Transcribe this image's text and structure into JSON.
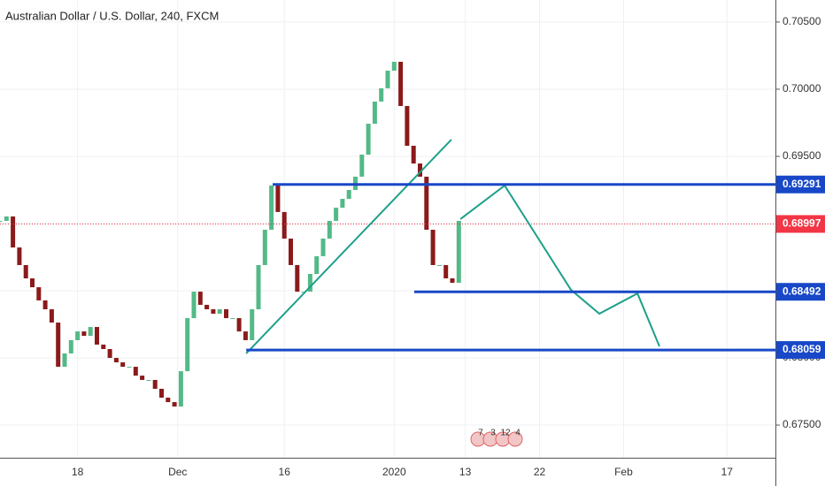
{
  "chart_data": {
    "type": "candlestick",
    "title": "Australian Dollar / U.S. Dollar, 240, FXCM",
    "x": [
      0,
      2,
      4,
      6,
      8,
      10,
      12,
      14,
      16,
      18,
      20,
      22,
      24,
      26,
      28,
      30,
      32,
      34,
      36,
      38,
      40,
      42,
      44,
      46,
      48,
      50,
      52,
      54,
      56,
      58,
      60,
      62,
      64,
      66,
      68,
      70,
      72,
      74,
      76,
      78,
      80,
      82,
      84,
      86,
      88,
      90,
      92,
      94,
      96,
      98,
      100,
      102,
      104,
      106,
      108,
      110,
      112,
      114,
      116,
      118,
      120,
      122,
      124,
      126,
      128,
      130,
      132,
      134,
      136,
      138,
      140,
      142
    ],
    "close": [
      0.6902,
      0.69053,
      0.68822,
      0.68691,
      0.68592,
      0.68526,
      0.68428,
      0.68362,
      0.68263,
      0.67934,
      0.68033,
      0.68132,
      0.68197,
      0.68164,
      0.6823,
      0.68099,
      0.68066,
      0.68,
      0.67967,
      0.67934,
      0.67934,
      0.67868,
      0.67836,
      0.67836,
      0.6777,
      0.67704,
      0.67671,
      0.67638,
      0.67901,
      0.68296,
      0.68493,
      0.68395,
      0.68362,
      0.68329,
      0.68362,
      0.68296,
      0.68296,
      0.68197,
      0.68132,
      0.68362,
      0.68691,
      0.68954,
      0.69283,
      0.69086,
      0.68888,
      0.68691,
      0.68493,
      0.68493,
      0.68625,
      0.68757,
      0.68888,
      0.6902,
      0.69118,
      0.69184,
      0.6925,
      0.69349,
      0.69513,
      0.69743,
      0.69908,
      0.70007,
      0.70138,
      0.70204,
      0.69875,
      0.69579,
      0.69447,
      0.69349,
      0.68954,
      0.68691,
      0.68691,
      0.68592,
      0.68559,
      0.6902
    ],
    "up_color": "#53b987",
    "down_color": "#8b1a1a",
    "xlim": [
      0,
      240
    ],
    "xticks": [
      {
        "value": 24,
        "label": "18"
      },
      {
        "value": 55,
        "label": "Dec"
      },
      {
        "value": 88,
        "label": "16"
      },
      {
        "value": 122,
        "label": "2020"
      },
      {
        "value": 144,
        "label": "13"
      },
      {
        "value": 167,
        "label": "22"
      },
      {
        "value": 193,
        "label": "Feb"
      },
      {
        "value": 225,
        "label": "17"
      }
    ],
    "ylim": [
      0.67257,
      0.70664
    ],
    "yticks": [
      {
        "value": 0.705,
        "label": "0.70500"
      },
      {
        "value": 0.7,
        "label": "0.70000"
      },
      {
        "value": 0.695,
        "label": "0.69500"
      },
      {
        "value": 0.69,
        "label": "0.69000"
      },
      {
        "value": 0.685,
        "label": "0.68500"
      },
      {
        "value": 0.68,
        "label": "0.68000"
      },
      {
        "value": 0.675,
        "label": "0.67500"
      }
    ],
    "grid": true,
    "levels": [
      {
        "value": 0.69291,
        "x_start": 84.4,
        "color": "#1848c8"
      },
      {
        "value": 0.68492,
        "x_start": 128.2,
        "color": "#1848c8"
      },
      {
        "value": 0.68059,
        "x_start": 76.2,
        "color": "#1848c8"
      }
    ],
    "current_price": {
      "value": 0.68997,
      "color": "#f23645"
    },
    "trend_line": {
      "x": [
        76.2,
        139.7
      ],
      "y": [
        0.68033,
        0.69625
      ],
      "color": "#1ea08a"
    },
    "projection": {
      "x": [
        142.5,
        156.2,
        176.7,
        185.5,
        197.3,
        204.1
      ],
      "y": [
        0.69033,
        0.69283,
        0.68507,
        0.68329,
        0.6848,
        0.68086
      ],
      "color": "#1ea08a"
    },
    "events": [
      "7",
      "3",
      "12",
      "4"
    ]
  }
}
